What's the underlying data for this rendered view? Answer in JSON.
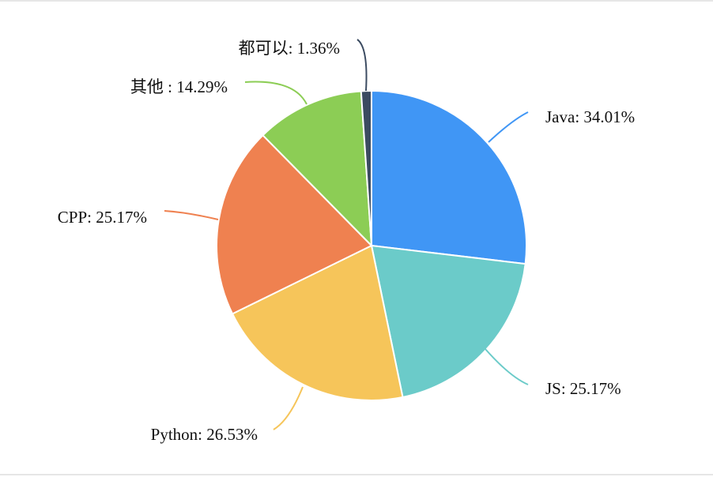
{
  "chart_data": {
    "type": "pie",
    "slices": [
      {
        "name": "Java",
        "percent": 34.01,
        "label": "Java: 34.01%",
        "color": "#4096f5"
      },
      {
        "name": "JS",
        "percent": 25.17,
        "label": "JS: 25.17%",
        "color": "#6bcbc9"
      },
      {
        "name": "Python",
        "percent": 26.53,
        "label": "Python: 26.53%",
        "color": "#f6c55a"
      },
      {
        "name": "CPP",
        "percent": 25.17,
        "label": "CPP: 25.17%",
        "color": "#ef8150"
      },
      {
        "name": "其他",
        "percent": 14.29,
        "label": "其他 : 14.29%",
        "color": "#8ccd55"
      },
      {
        "name": "都可以",
        "percent": 1.36,
        "label": "都可以: 1.36%",
        "color": "#3b4b61"
      }
    ]
  }
}
